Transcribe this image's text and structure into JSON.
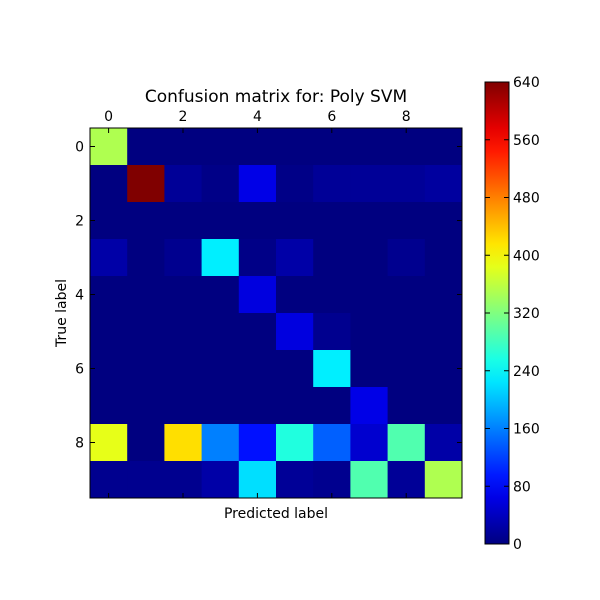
{
  "chart_data": {
    "type": "heatmap",
    "title": "Confusion matrix for: Poly SVM",
    "xlabel": "Predicted label",
    "ylabel": "True label",
    "x_tick_labels": [
      "0",
      "2",
      "4",
      "6",
      "8"
    ],
    "y_tick_labels": [
      "0",
      "2",
      "4",
      "6",
      "8"
    ],
    "x_tick_values": [
      0,
      2,
      4,
      6,
      8
    ],
    "y_tick_values": [
      0,
      2,
      4,
      6,
      8
    ],
    "rows": [
      0,
      1,
      2,
      3,
      4,
      5,
      6,
      7,
      8,
      9
    ],
    "cols": [
      0,
      1,
      2,
      3,
      4,
      5,
      6,
      7,
      8,
      9
    ],
    "values": [
      [
        350,
        0,
        0,
        0,
        0,
        0,
        0,
        0,
        0,
        0
      ],
      [
        0,
        640,
        15,
        5,
        65,
        5,
        15,
        15,
        15,
        20
      ],
      [
        0,
        0,
        0,
        0,
        0,
        0,
        0,
        0,
        0,
        0
      ],
      [
        25,
        0,
        10,
        230,
        5,
        25,
        0,
        0,
        10,
        0
      ],
      [
        0,
        0,
        0,
        0,
        60,
        0,
        0,
        0,
        0,
        0
      ],
      [
        0,
        0,
        0,
        0,
        0,
        60,
        10,
        0,
        0,
        0
      ],
      [
        0,
        0,
        0,
        0,
        0,
        0,
        230,
        0,
        0,
        0
      ],
      [
        0,
        0,
        0,
        0,
        0,
        0,
        0,
        65,
        0,
        0
      ],
      [
        385,
        0,
        420,
        160,
        90,
        260,
        140,
        50,
        290,
        25
      ],
      [
        10,
        10,
        10,
        25,
        220,
        15,
        10,
        290,
        15,
        350
      ]
    ],
    "colorbar": {
      "vmin": 0,
      "vmax": 640,
      "tick_labels": [
        "0",
        "80",
        "160",
        "240",
        "320",
        "400",
        "480",
        "560",
        "640"
      ],
      "tick_values": [
        0,
        80,
        160,
        240,
        320,
        400,
        480,
        560,
        640
      ],
      "colormap": "jet"
    }
  }
}
